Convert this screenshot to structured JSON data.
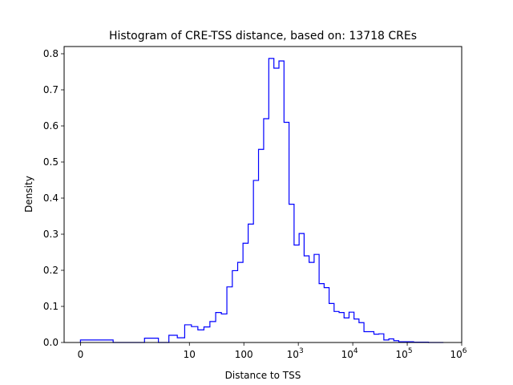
{
  "chart_data": {
    "type": "histogram",
    "title": "Histogram of CRE-TSS distance, based on: 13718 CREs",
    "xlabel": "Distance to TSS",
    "ylabel": "Density",
    "x_scale": "symlog",
    "xlim": [
      -0.3,
      1000000
    ],
    "ylim": [
      0,
      0.82
    ],
    "x_ticks": [
      {
        "value": 0,
        "label": "0",
        "exp": ""
      },
      {
        "value": 10,
        "label": "10",
        "exp": ""
      },
      {
        "value": 100,
        "label": "100",
        "exp": ""
      },
      {
        "value": 1000,
        "label": "10",
        "exp": "3"
      },
      {
        "value": 10000,
        "label": "10",
        "exp": "4"
      },
      {
        "value": 100000,
        "label": "10",
        "exp": "5"
      },
      {
        "value": 1000000,
        "label": "10",
        "exp": "6"
      }
    ],
    "y_ticks": [
      {
        "value": 0.0,
        "label": "0.0"
      },
      {
        "value": 0.1,
        "label": "0.1"
      },
      {
        "value": 0.2,
        "label": "0.2"
      },
      {
        "value": 0.3,
        "label": "0.3"
      },
      {
        "value": 0.4,
        "label": "0.4"
      },
      {
        "value": 0.5,
        "label": "0.5"
      },
      {
        "value": 0.6,
        "label": "0.6"
      },
      {
        "value": 0.7,
        "label": "0.7"
      },
      {
        "value": 0.8,
        "label": "0.8"
      }
    ],
    "line_color": "#0000ff",
    "grid": false,
    "bin_edges": [
      0,
      0.6,
      1.5,
      2.7,
      4.2,
      6.0,
      8.2,
      10.9,
      14.3,
      18.5,
      23.8,
      30.4,
      38.6,
      48.8,
      61.4,
      77.0,
      96.4,
      120,
      150,
      186,
      231,
      287,
      356,
      441,
      546,
      676,
      836,
      1034,
      1278,
      1579,
      1951,
      2410,
      2977,
      3676,
      4539,
      5604,
      6918,
      8539,
      10540,
      13008,
      16052,
      19807,
      24438,
      30151,
      37196,
      45886,
      56604,
      69823,
      86126,
      106232,
      131030,
      161614,
      199334,
      245853,
      303226,
      373987,
      461259
    ],
    "densities": [
      0.007,
      0.0,
      0.012,
      0.0,
      0.02,
      0.013,
      0.049,
      0.044,
      0.035,
      0.043,
      0.058,
      0.083,
      0.079,
      0.154,
      0.199,
      0.222,
      0.275,
      0.328,
      0.449,
      0.535,
      0.62,
      0.787,
      0.76,
      0.78,
      0.61,
      0.383,
      0.27,
      0.302,
      0.24,
      0.222,
      0.244,
      0.163,
      0.152,
      0.108,
      0.086,
      0.083,
      0.068,
      0.084,
      0.065,
      0.055,
      0.03,
      0.03,
      0.023,
      0.024,
      0.007,
      0.01,
      0.005,
      0.002,
      0.002,
      0.002,
      0.001,
      0.001,
      0.001,
      0.0,
      0.0,
      0.0
    ]
  }
}
